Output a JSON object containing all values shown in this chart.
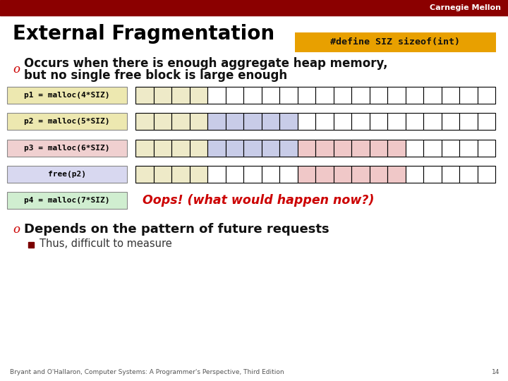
{
  "title": "External Fragmentation",
  "define_box_text": "#define SIZ sizeof(int)",
  "define_box_bg": "#E8A000",
  "header_bg": "#8B0000",
  "header_text": "Carnegie Mellon",
  "bullet1_line1": "Occurs when there is enough aggregate heap memory,",
  "bullet1_line2": "but no single free block is large enough",
  "bullet2_text": "Depends on the pattern of future requests",
  "subbullet_text": "Thus, difficult to measure",
  "footer_text": "Bryant and O'Hallaron, Computer Systems: A Programmer's Perspective, Third Edition",
  "footer_page": "14",
  "rows": [
    {
      "label": "p1 = malloc(4*SIZ)",
      "label_bg": "#EDE8B0",
      "n_cells": 20,
      "colored": [
        [
          0,
          3,
          "#EEEAC8"
        ]
      ],
      "has_grid": true
    },
    {
      "label": "p2 = malloc(5*SIZ)",
      "label_bg": "#EDE8B0",
      "n_cells": 20,
      "colored": [
        [
          0,
          3,
          "#EEEAC8"
        ],
        [
          4,
          8,
          "#C8CCE8"
        ]
      ],
      "has_grid": true
    },
    {
      "label": "p3 = malloc(6*SIZ)",
      "label_bg": "#F0D0D0",
      "n_cells": 20,
      "colored": [
        [
          0,
          3,
          "#EEEAC8"
        ],
        [
          4,
          8,
          "#C8CCE8"
        ],
        [
          9,
          14,
          "#F0C8C8"
        ]
      ],
      "has_grid": true
    },
    {
      "label": "free(p2)",
      "label_bg": "#D8D8F0",
      "n_cells": 20,
      "colored": [
        [
          0,
          3,
          "#EEEAC8"
        ],
        [
          9,
          14,
          "#F0C8C8"
        ]
      ],
      "has_grid": true
    },
    {
      "label": "p4 = malloc(7*SIZ)",
      "label_bg": "#D0EED0",
      "n_cells": 0,
      "colored": [],
      "has_grid": false
    }
  ],
  "oops_text": "Oops! (what would happen now?)",
  "bg_color": "#FFFFFF",
  "bullet_color": "#CC0000",
  "oops_color": "#CC0000",
  "cell_border": "#000000",
  "free_cell_color": "#FFFFFF",
  "label_border": "#888888"
}
